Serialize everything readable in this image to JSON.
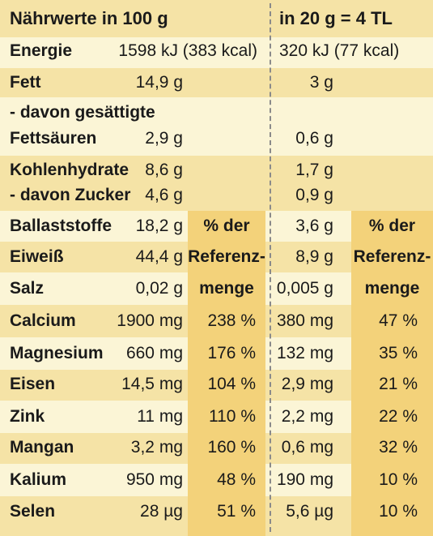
{
  "header": {
    "left": "Nährwerte in 100 g",
    "right": "in 20 g = 4 TL"
  },
  "energy": {
    "label": "Energie",
    "v100": "1598 kJ  (383 kcal)",
    "v20": "320 kJ  (77 kcal)"
  },
  "rows": [
    {
      "label": "Fett",
      "v100": "14,9 g",
      "v20": "3 g"
    },
    {
      "label": "- davon gesättigte",
      "v100": "",
      "v20": ""
    },
    {
      "label": "Fettsäuren",
      "v100": "2,9 g",
      "v20": "0,6 g"
    },
    {
      "label": "Kohlenhydrate",
      "v100": "8,6 g",
      "v20": "1,7 g"
    },
    {
      "label": "- davon Zucker",
      "v100": "4,6 g",
      "v20": "0,9 g"
    },
    {
      "label": "Ballaststoffe",
      "v100": "18,2 g",
      "v20": "3,6 g"
    },
    {
      "label": "Eiweiß",
      "v100": "44,4 g",
      "v20": "8,9 g"
    },
    {
      "label": "Salz",
      "v100": "0,02 g",
      "v20": "0,005 g"
    },
    {
      "label": "Calcium",
      "v100": "1900 mg",
      "r100": "238 %",
      "v20": "380 mg",
      "r20": "47 %"
    },
    {
      "label": "Magnesium",
      "v100": "660 mg",
      "r100": "176 %",
      "v20": "132 mg",
      "r20": "35 %"
    },
    {
      "label": "Eisen",
      "v100": "14,5 mg",
      "r100": "104 %",
      "v20": "2,9 mg",
      "r20": "21 %"
    },
    {
      "label": "Zink",
      "v100": "11 mg",
      "r100": "110 %",
      "v20": "2,2 mg",
      "r20": "22 %"
    },
    {
      "label": "Mangan",
      "v100": "3,2 mg",
      "r100": "160 %",
      "v20": "0,6 mg",
      "r20": "32 %"
    },
    {
      "label": "Kalium",
      "v100": "950 mg",
      "r100": "48 %",
      "v20": "190 mg",
      "r20": "10 %"
    },
    {
      "label": "Selen",
      "v100": "28 µg",
      "r100": "51 %",
      "v20": "5,6 µg",
      "r20": "10 %"
    }
  ],
  "ref_header": {
    "line1": "% der",
    "line2": "Referenz-",
    "line3": "menge"
  },
  "colors": {
    "dark_band": "#f5e3a6",
    "light_band": "#fbf5d6",
    "ref_column": "#f3d27a",
    "divider": "#8a8a8a"
  }
}
